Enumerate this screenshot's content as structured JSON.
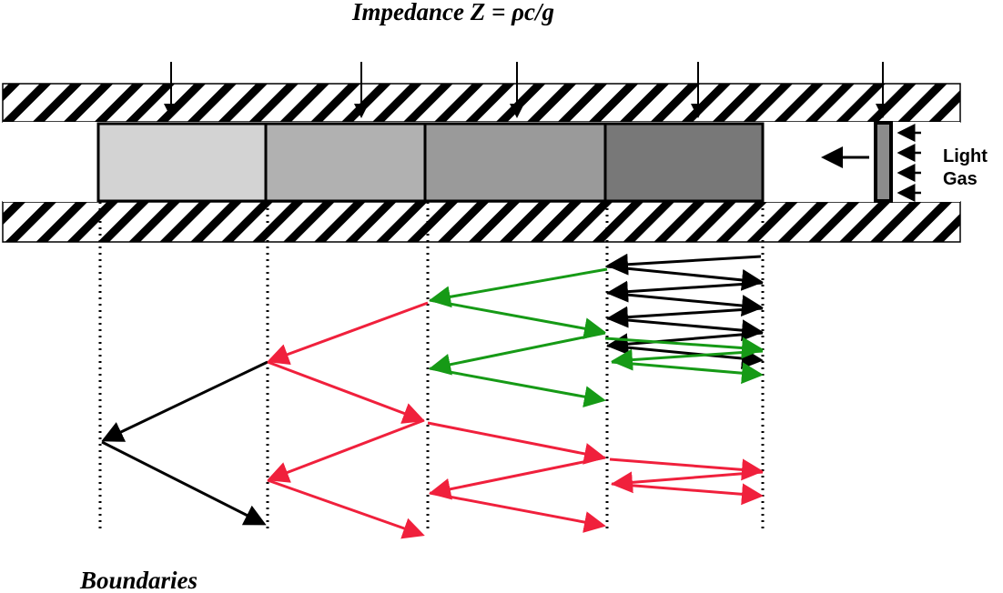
{
  "title": "Impedance Z = ρc/g",
  "footer_label": "Boundaries",
  "gas_label": {
    "line1": "Light",
    "line2": "Gas"
  },
  "colors": {
    "layers": [
      "#d3d3d3",
      "#b1b1b1",
      "#9a9a9a",
      "#787878"
    ],
    "piston": "#8c8c8c",
    "red": "#f0203c",
    "green": "#169a16",
    "black": "#000000"
  }
}
